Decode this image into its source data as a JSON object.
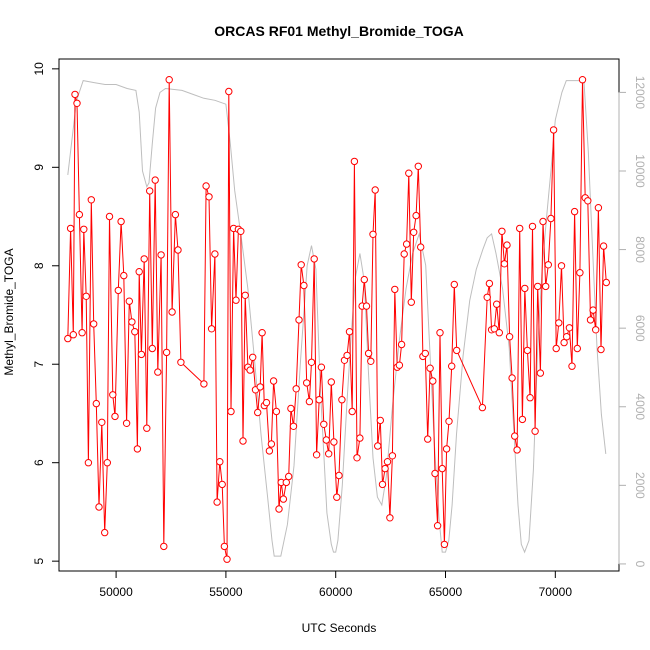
{
  "chart_data": {
    "type": "line",
    "title": "ORCAS RF01 Methyl_Bromide_TOGA",
    "xlabel": "UTC Seconds",
    "ylabel": "Methyl_Bromide_TOGA",
    "xlim": [
      47400,
      72900
    ],
    "ylim": [
      4.9,
      10.1
    ],
    "y2lim": [
      -180,
      12850
    ],
    "x_ticks": [
      50000,
      55000,
      60000,
      65000,
      70000
    ],
    "y_ticks": [
      5,
      6,
      7,
      8,
      9,
      10
    ],
    "y2_ticks": [
      0,
      2000,
      4000,
      6000,
      8000,
      10000,
      12000
    ],
    "grid": false,
    "legend": "none",
    "colors": {
      "series": "#ff0000",
      "secondary": "#bebebe"
    },
    "series": [
      {
        "role": "primary-y",
        "points": [
          [
            47800,
            7.26
          ],
          [
            47930,
            8.38
          ],
          [
            48050,
            7.3
          ],
          [
            48130,
            9.74
          ],
          [
            48220,
            9.65
          ],
          [
            48330,
            8.52
          ],
          [
            48450,
            7.32
          ],
          [
            48530,
            8.37
          ],
          [
            48640,
            7.69
          ],
          [
            48740,
            6.0
          ],
          [
            48870,
            8.67
          ],
          [
            48980,
            7.41
          ],
          [
            49100,
            6.6
          ],
          [
            49220,
            5.55
          ],
          [
            49350,
            6.41
          ],
          [
            49480,
            5.29
          ],
          [
            49600,
            6.0
          ],
          [
            49700,
            8.5
          ],
          [
            49850,
            6.69
          ],
          [
            49950,
            6.47
          ],
          [
            50100,
            7.75
          ],
          [
            50230,
            8.45
          ],
          [
            50350,
            7.9
          ],
          [
            50480,
            6.4
          ],
          [
            50600,
            7.64
          ],
          [
            50720,
            7.43
          ],
          [
            50850,
            7.33
          ],
          [
            50970,
            6.14
          ],
          [
            51050,
            7.94
          ],
          [
            51150,
            7.1
          ],
          [
            51280,
            8.07
          ],
          [
            51400,
            6.35
          ],
          [
            51530,
            8.76
          ],
          [
            51650,
            7.16
          ],
          [
            51780,
            8.87
          ],
          [
            51900,
            6.92
          ],
          [
            52050,
            8.11
          ],
          [
            52170,
            5.15
          ],
          [
            52300,
            7.12
          ],
          [
            52420,
            9.89
          ],
          [
            52550,
            7.53
          ],
          [
            52700,
            8.52
          ],
          [
            52820,
            8.16
          ],
          [
            52950,
            7.02
          ],
          [
            54000,
            6.8
          ],
          [
            54100,
            8.81
          ],
          [
            54230,
            8.7
          ],
          [
            54350,
            7.36
          ],
          [
            54500,
            8.12
          ],
          [
            54600,
            5.6
          ],
          [
            54720,
            6.01
          ],
          [
            54830,
            5.78
          ],
          [
            54930,
            5.15
          ],
          [
            55050,
            5.02
          ],
          [
            55130,
            9.77
          ],
          [
            55230,
            6.52
          ],
          [
            55350,
            8.38
          ],
          [
            55460,
            7.65
          ],
          [
            55570,
            8.37
          ],
          [
            55680,
            8.35
          ],
          [
            55780,
            6.22
          ],
          [
            55880,
            7.7
          ],
          [
            56000,
            6.97
          ],
          [
            56100,
            6.94
          ],
          [
            56220,
            7.07
          ],
          [
            56350,
            6.74
          ],
          [
            56450,
            6.51
          ],
          [
            56560,
            6.77
          ],
          [
            56650,
            7.32
          ],
          [
            56750,
            6.58
          ],
          [
            56850,
            6.61
          ],
          [
            56980,
            6.12
          ],
          [
            57070,
            6.19
          ],
          [
            57170,
            6.83
          ],
          [
            57300,
            6.52
          ],
          [
            57420,
            5.53
          ],
          [
            57520,
            5.8
          ],
          [
            57620,
            5.63
          ],
          [
            57750,
            5.8
          ],
          [
            57860,
            5.86
          ],
          [
            57960,
            6.55
          ],
          [
            58080,
            6.37
          ],
          [
            58200,
            6.75
          ],
          [
            58330,
            7.45
          ],
          [
            58430,
            8.01
          ],
          [
            58550,
            7.8
          ],
          [
            58680,
            6.81
          ],
          [
            58800,
            6.62
          ],
          [
            58900,
            7.02
          ],
          [
            59020,
            8.07
          ],
          [
            59130,
            6.08
          ],
          [
            59250,
            6.64
          ],
          [
            59350,
            6.97
          ],
          [
            59460,
            6.39
          ],
          [
            59570,
            6.23
          ],
          [
            59680,
            6.09
          ],
          [
            59800,
            6.82
          ],
          [
            59920,
            6.21
          ],
          [
            60050,
            5.65
          ],
          [
            60150,
            5.87
          ],
          [
            60280,
            6.64
          ],
          [
            60400,
            7.04
          ],
          [
            60520,
            7.09
          ],
          [
            60630,
            7.33
          ],
          [
            60750,
            6.52
          ],
          [
            60850,
            9.06
          ],
          [
            60970,
            6.05
          ],
          [
            61100,
            6.25
          ],
          [
            61200,
            7.59
          ],
          [
            61300,
            7.86
          ],
          [
            61400,
            7.59
          ],
          [
            61500,
            7.11
          ],
          [
            61600,
            7.03
          ],
          [
            61700,
            8.32
          ],
          [
            61800,
            8.77
          ],
          [
            61910,
            6.17
          ],
          [
            62030,
            6.43
          ],
          [
            62130,
            5.78
          ],
          [
            62250,
            5.94
          ],
          [
            62360,
            6.01
          ],
          [
            62470,
            5.44
          ],
          [
            62580,
            6.07
          ],
          [
            62690,
            7.76
          ],
          [
            62800,
            6.97
          ],
          [
            62900,
            6.99
          ],
          [
            63000,
            7.2
          ],
          [
            63120,
            8.12
          ],
          [
            63230,
            8.22
          ],
          [
            63330,
            8.94
          ],
          [
            63440,
            7.63
          ],
          [
            63550,
            8.34
          ],
          [
            63660,
            8.51
          ],
          [
            63760,
            9.01
          ],
          [
            63870,
            8.19
          ],
          [
            63970,
            7.08
          ],
          [
            64080,
            7.11
          ],
          [
            64190,
            6.24
          ],
          [
            64300,
            6.96
          ],
          [
            64420,
            6.83
          ],
          [
            64520,
            5.89
          ],
          [
            64640,
            5.36
          ],
          [
            64750,
            7.32
          ],
          [
            64850,
            5.94
          ],
          [
            64950,
            5.17
          ],
          [
            65050,
            6.14
          ],
          [
            65160,
            6.42
          ],
          [
            65280,
            6.98
          ],
          [
            65400,
            7.81
          ],
          [
            65510,
            7.14
          ],
          [
            66680,
            6.56
          ],
          [
            66900,
            7.68
          ],
          [
            67000,
            7.82
          ],
          [
            67100,
            7.35
          ],
          [
            67220,
            7.36
          ],
          [
            67330,
            7.61
          ],
          [
            67450,
            7.32
          ],
          [
            67570,
            8.35
          ],
          [
            67680,
            8.02
          ],
          [
            67800,
            8.21
          ],
          [
            67920,
            7.28
          ],
          [
            68030,
            6.86
          ],
          [
            68150,
            6.27
          ],
          [
            68260,
            6.13
          ],
          [
            68380,
            8.38
          ],
          [
            68500,
            6.44
          ],
          [
            68610,
            7.77
          ],
          [
            68730,
            7.14
          ],
          [
            68850,
            6.66
          ],
          [
            68960,
            8.4
          ],
          [
            69080,
            6.32
          ],
          [
            69200,
            7.79
          ],
          [
            69320,
            6.91
          ],
          [
            69440,
            8.45
          ],
          [
            69560,
            7.79
          ],
          [
            69680,
            8.01
          ],
          [
            69800,
            8.48
          ],
          [
            69920,
            9.38
          ],
          [
            70040,
            7.16
          ],
          [
            70160,
            7.42
          ],
          [
            70280,
            8.0
          ],
          [
            70400,
            7.22
          ],
          [
            70520,
            7.28
          ],
          [
            70640,
            7.37
          ],
          [
            70760,
            6.98
          ],
          [
            70880,
            8.55
          ],
          [
            71000,
            7.16
          ],
          [
            71120,
            7.93
          ],
          [
            71240,
            9.89
          ],
          [
            71360,
            8.69
          ],
          [
            71480,
            8.66
          ],
          [
            71600,
            7.45
          ],
          [
            71720,
            7.55
          ],
          [
            71840,
            7.35
          ],
          [
            71960,
            8.59
          ],
          [
            72080,
            7.15
          ],
          [
            72200,
            8.2
          ],
          [
            72320,
            7.83
          ]
        ]
      },
      {
        "role": "secondary-y",
        "points": [
          [
            47800,
            9900
          ],
          [
            48200,
            11800
          ],
          [
            48500,
            12300
          ],
          [
            49000,
            12250
          ],
          [
            49500,
            12200
          ],
          [
            50000,
            12200
          ],
          [
            50500,
            12100
          ],
          [
            50900,
            12050
          ],
          [
            51050,
            11500
          ],
          [
            51200,
            10000
          ],
          [
            51400,
            9600
          ],
          [
            51500,
            9700
          ],
          [
            51650,
            10700
          ],
          [
            51800,
            11600
          ],
          [
            52000,
            12000
          ],
          [
            52250,
            12100
          ],
          [
            53000,
            12050
          ],
          [
            53500,
            11950
          ],
          [
            54000,
            11850
          ],
          [
            54500,
            11800
          ],
          [
            55000,
            11700
          ],
          [
            55200,
            10700
          ],
          [
            55400,
            9500
          ],
          [
            55700,
            8300
          ],
          [
            56000,
            7000
          ],
          [
            56300,
            5200
          ],
          [
            56600,
            3300
          ],
          [
            56900,
            1700
          ],
          [
            57100,
            600
          ],
          [
            57200,
            200
          ],
          [
            57500,
            200
          ],
          [
            57800,
            1000
          ],
          [
            58100,
            2500
          ],
          [
            58400,
            5200
          ],
          [
            58700,
            7600
          ],
          [
            58900,
            8100
          ],
          [
            59100,
            7500
          ],
          [
            59300,
            4500
          ],
          [
            59600,
            1300
          ],
          [
            59800,
            500
          ],
          [
            59900,
            300
          ],
          [
            60000,
            300
          ],
          [
            60100,
            600
          ],
          [
            60300,
            2000
          ],
          [
            60500,
            4000
          ],
          [
            60700,
            5800
          ],
          [
            60900,
            7300
          ],
          [
            61100,
            7900
          ],
          [
            61300,
            7200
          ],
          [
            61500,
            4800
          ],
          [
            61700,
            2700
          ],
          [
            61900,
            1700
          ],
          [
            62100,
            1500
          ],
          [
            62300,
            2200
          ],
          [
            62600,
            4100
          ],
          [
            62900,
            5700
          ],
          [
            63200,
            7000
          ],
          [
            63500,
            7900
          ],
          [
            63800,
            8400
          ],
          [
            64100,
            7600
          ],
          [
            64300,
            5300
          ],
          [
            64500,
            3000
          ],
          [
            64700,
            1200
          ],
          [
            64850,
            300
          ],
          [
            65000,
            300
          ],
          [
            65150,
            600
          ],
          [
            65300,
            1500
          ],
          [
            65500,
            3300
          ],
          [
            65800,
            5300
          ],
          [
            66100,
            6700
          ],
          [
            66400,
            7500
          ],
          [
            66700,
            8000
          ],
          [
            66900,
            8300
          ],
          [
            67100,
            8400
          ],
          [
            67300,
            7900
          ],
          [
            67600,
            7000
          ],
          [
            67900,
            5500
          ],
          [
            68100,
            3500
          ],
          [
            68300,
            1500
          ],
          [
            68450,
            500
          ],
          [
            68600,
            300
          ],
          [
            68800,
            600
          ],
          [
            69000,
            2400
          ],
          [
            69200,
            5500
          ],
          [
            69400,
            7500
          ],
          [
            69600,
            8800
          ],
          [
            69800,
            10000
          ],
          [
            70000,
            11300
          ],
          [
            70300,
            12000
          ],
          [
            70500,
            12300
          ],
          [
            71000,
            12300
          ],
          [
            71300,
            12300
          ],
          [
            71500,
            10500
          ],
          [
            71700,
            8000
          ],
          [
            71900,
            5500
          ],
          [
            72100,
            3800
          ],
          [
            72300,
            2800
          ]
        ]
      }
    ]
  }
}
